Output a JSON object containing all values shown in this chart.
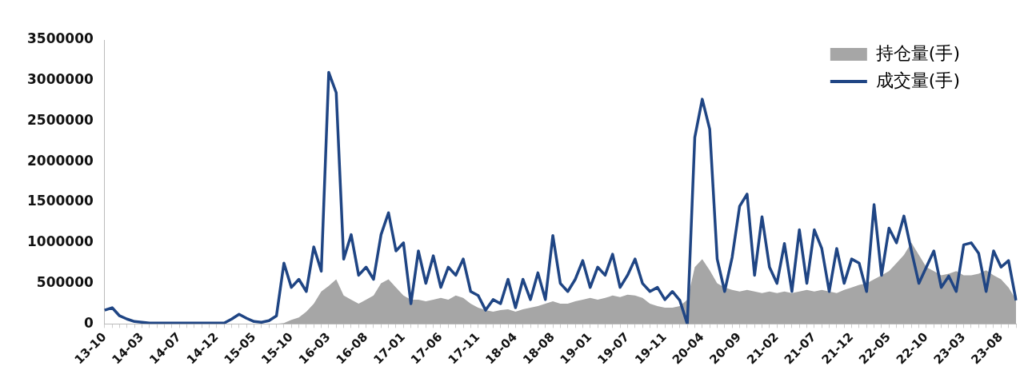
{
  "chart_data": {
    "type": "line",
    "categories": [
      "13-10",
      null,
      null,
      null,
      null,
      "14-03",
      null,
      null,
      null,
      null,
      "14-07",
      null,
      null,
      null,
      null,
      "14-12",
      null,
      null,
      null,
      null,
      "15-05",
      null,
      null,
      null,
      null,
      "15-10",
      null,
      null,
      null,
      null,
      "16-03",
      null,
      null,
      null,
      null,
      "16-08",
      null,
      null,
      null,
      null,
      "17-01",
      null,
      null,
      null,
      null,
      "17-06",
      null,
      null,
      null,
      null,
      "17-11",
      null,
      null,
      null,
      null,
      "18-04",
      null,
      null,
      null,
      null,
      "18-08",
      null,
      null,
      null,
      null,
      "19-01",
      null,
      null,
      null,
      null,
      "19-07",
      null,
      null,
      null,
      null,
      "19-11",
      null,
      null,
      null,
      null,
      "20-04",
      null,
      null,
      null,
      null,
      "20-09",
      null,
      null,
      null,
      null,
      "21-02",
      null,
      null,
      null,
      null,
      "21-07",
      null,
      null,
      null,
      null,
      "21-12",
      null,
      null,
      null,
      null,
      "22-05",
      null,
      null,
      null,
      null,
      "22-10",
      null,
      null,
      null,
      null,
      "23-03",
      null,
      null,
      null,
      null,
      "23-08",
      null,
      null
    ],
    "series": [
      {
        "name": "持仓量(手)",
        "type": "area",
        "color": "#a6a6a6",
        "values": [
          0,
          0,
          0,
          0,
          0,
          0,
          0,
          0,
          0,
          0,
          0,
          0,
          0,
          0,
          0,
          0,
          0,
          0,
          0,
          0,
          0,
          0,
          0,
          0,
          10000,
          50000,
          80000,
          150000,
          250000,
          400000,
          470000,
          550000,
          350000,
          300000,
          250000,
          300000,
          350000,
          500000,
          550000,
          450000,
          350000,
          300000,
          300000,
          280000,
          300000,
          320000,
          300000,
          350000,
          320000,
          250000,
          200000,
          170000,
          150000,
          170000,
          180000,
          150000,
          180000,
          200000,
          220000,
          250000,
          280000,
          250000,
          250000,
          280000,
          300000,
          320000,
          300000,
          320000,
          350000,
          330000,
          360000,
          350000,
          320000,
          250000,
          220000,
          200000,
          200000,
          220000,
          300000,
          700000,
          800000,
          660000,
          500000,
          450000,
          420000,
          400000,
          420000,
          400000,
          380000,
          400000,
          380000,
          400000,
          380000,
          400000,
          420000,
          400000,
          420000,
          400000,
          380000,
          420000,
          450000,
          480000,
          500000,
          550000,
          600000,
          650000,
          750000,
          850000,
          1000000,
          850000,
          700000,
          650000,
          600000,
          620000,
          650000,
          600000,
          600000,
          620000,
          660000,
          600000,
          550000,
          450000,
          300000
        ]
      },
      {
        "name": "成交量(手)",
        "type": "line",
        "color": "#1f4584",
        "values": [
          170000,
          200000,
          100000,
          60000,
          30000,
          20000,
          10000,
          10000,
          10000,
          10000,
          10000,
          10000,
          10000,
          10000,
          10000,
          10000,
          10000,
          60000,
          120000,
          70000,
          30000,
          20000,
          40000,
          100000,
          750000,
          450000,
          550000,
          400000,
          950000,
          650000,
          3100000,
          2850000,
          800000,
          1100000,
          600000,
          700000,
          550000,
          1100000,
          1370000,
          900000,
          1000000,
          250000,
          900000,
          500000,
          840000,
          450000,
          700000,
          600000,
          800000,
          400000,
          350000,
          170000,
          300000,
          250000,
          550000,
          200000,
          550000,
          300000,
          630000,
          300000,
          1090000,
          500000,
          400000,
          550000,
          780000,
          450000,
          700000,
          600000,
          860000,
          450000,
          600000,
          800000,
          500000,
          400000,
          450000,
          300000,
          400000,
          290000,
          0,
          2300000,
          2770000,
          2400000,
          800000,
          400000,
          820000,
          1450000,
          1600000,
          600000,
          1320000,
          700000,
          500000,
          990000,
          400000,
          1160000,
          500000,
          1160000,
          930000,
          400000,
          930000,
          500000,
          800000,
          750000,
          400000,
          1470000,
          600000,
          1180000,
          1000000,
          1330000,
          900000,
          500000,
          700000,
          900000,
          450000,
          590000,
          400000,
          975000,
          1000000,
          870000,
          400000,
          900000,
          700000,
          780000,
          290000
        ]
      }
    ],
    "ylim": [
      0,
      3500000
    ],
    "yticks": [
      0,
      500000,
      1000000,
      1500000,
      2000000,
      2500000,
      3000000,
      3500000
    ],
    "legend": "top right"
  }
}
